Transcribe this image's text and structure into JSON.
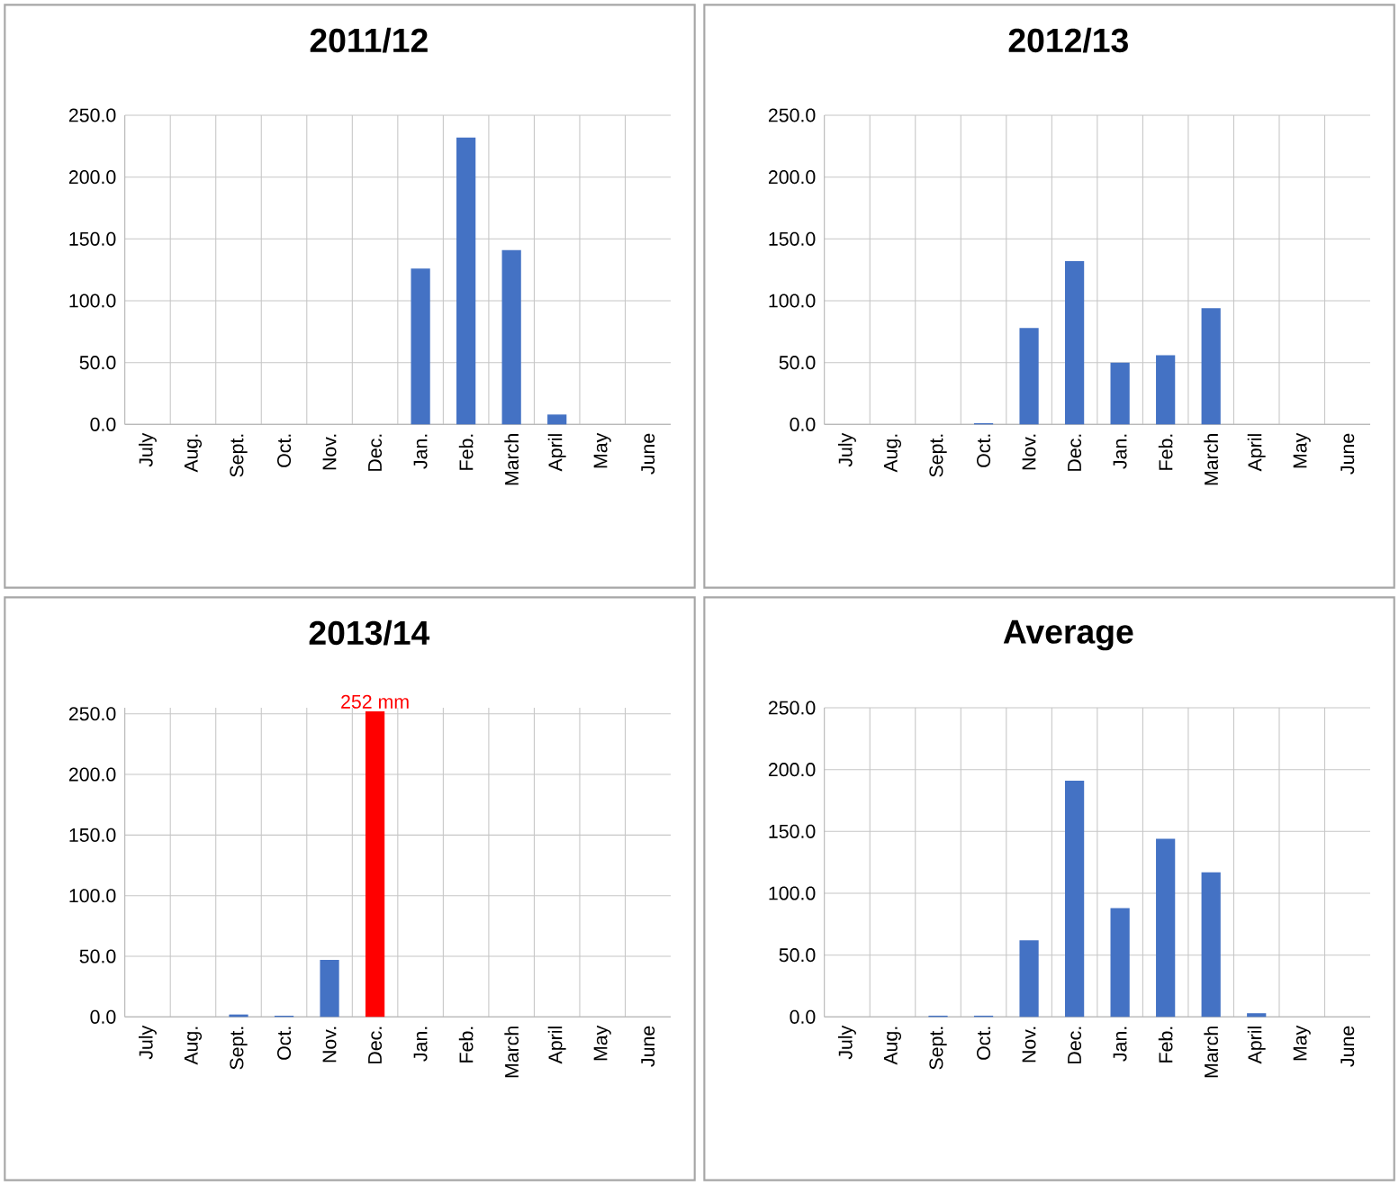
{
  "chart_data": [
    {
      "type": "bar",
      "title": "2011/12",
      "categories": [
        "July",
        "Aug.",
        "Sept.",
        "Oct.",
        "Nov.",
        "Dec.",
        "Jan.",
        "Feb.",
        "March",
        "April",
        "May",
        "June"
      ],
      "values": [
        0,
        0,
        0,
        0,
        0,
        0,
        126,
        232,
        141,
        8,
        0,
        0
      ],
      "color": "#4472c4",
      "ylim": [
        0,
        250
      ],
      "yticks": [
        {
          "value": 0,
          "label": "0.0"
        },
        {
          "value": 50,
          "label": "50.0"
        },
        {
          "value": 100,
          "label": "100.0"
        },
        {
          "value": 150,
          "label": "150.0"
        },
        {
          "value": 200,
          "label": "200.0"
        },
        {
          "value": 250,
          "label": "250.0"
        }
      ],
      "grid": true
    },
    {
      "type": "bar",
      "title": "2012/13",
      "categories": [
        "July",
        "Aug.",
        "Sept.",
        "Oct.",
        "Nov.",
        "Dec.",
        "Jan.",
        "Feb.",
        "March",
        "April",
        "May",
        "June"
      ],
      "values": [
        0,
        0,
        0,
        1,
        78,
        132,
        50,
        56,
        94,
        0,
        0,
        0
      ],
      "color": "#4472c4",
      "ylim": [
        0,
        250
      ],
      "yticks": [
        {
          "value": 0,
          "label": "0.0"
        },
        {
          "value": 50,
          "label": "50.0"
        },
        {
          "value": 100,
          "label": "100.0"
        },
        {
          "value": 150,
          "label": "150.0"
        },
        {
          "value": 200,
          "label": "200.0"
        },
        {
          "value": 250,
          "label": "250.0"
        }
      ],
      "grid": true
    },
    {
      "type": "bar",
      "title": "2013/14",
      "categories": [
        "July",
        "Aug.",
        "Sept.",
        "Oct.",
        "Nov.",
        "Dec.",
        "Jan.",
        "Feb.",
        "March",
        "April",
        "May",
        "June"
      ],
      "values": [
        0,
        0,
        2,
        1,
        47,
        252,
        0,
        0,
        0,
        0,
        0,
        0
      ],
      "colors": [
        "#4472c4",
        "#4472c4",
        "#4472c4",
        "#4472c4",
        "#4472c4",
        "#ff0000",
        "#4472c4",
        "#4472c4",
        "#4472c4",
        "#4472c4",
        "#4472c4",
        "#4472c4"
      ],
      "ylim": [
        0,
        255
      ],
      "yticks": [
        {
          "value": 0,
          "label": "0.0"
        },
        {
          "value": 50,
          "label": "50.0"
        },
        {
          "value": 100,
          "label": "100.0"
        },
        {
          "value": 150,
          "label": "150.0"
        },
        {
          "value": 200,
          "label": "200.0"
        },
        {
          "value": 250,
          "label": "250.0"
        }
      ],
      "grid": true,
      "annotations": [
        {
          "text": "252 mm",
          "x": "Dec.",
          "y": 252
        }
      ]
    },
    {
      "type": "bar",
      "title": "Average",
      "categories": [
        "July",
        "Aug.",
        "Sept.",
        "Oct.",
        "Nov.",
        "Dec.",
        "Jan.",
        "Feb.",
        "March",
        "April",
        "May",
        "June"
      ],
      "values": [
        0,
        0,
        1,
        1,
        62,
        191,
        88,
        144,
        117,
        3,
        0,
        0
      ],
      "color": "#4472c4",
      "ylim": [
        0,
        250
      ],
      "yticks": [
        {
          "value": 0,
          "label": "0.0"
        },
        {
          "value": 50,
          "label": "50.0"
        },
        {
          "value": 100,
          "label": "100.0"
        },
        {
          "value": 150,
          "label": "150.0"
        },
        {
          "value": 200,
          "label": "200.0"
        },
        {
          "value": 250,
          "label": "250.0"
        }
      ],
      "grid": true
    }
  ]
}
